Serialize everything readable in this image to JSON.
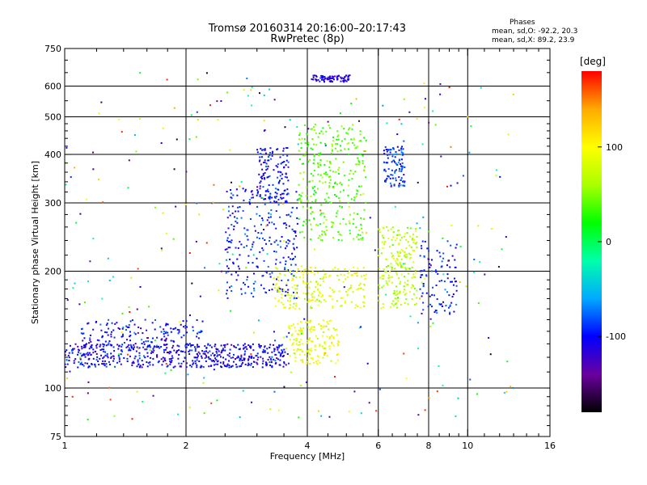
{
  "chart_data": {
    "type": "scatter",
    "title": "Tromsø 20160314 20:16:00–20:17:43",
    "subtitle": "RwPretec (8p)",
    "xlabel": "Frequency [MHz]",
    "ylabel": "Stationary phase Virtual Height [km]",
    "x_scale": "log",
    "y_scale": "log",
    "xlim": [
      1,
      16
    ],
    "ylim": [
      75,
      750
    ],
    "x_ticks": [
      1,
      2,
      4,
      6,
      8,
      10,
      16
    ],
    "y_ticks": [
      75,
      100,
      200,
      300,
      400,
      500,
      600,
      750
    ],
    "x_gridlines": [
      2,
      4,
      6,
      8,
      10
    ],
    "y_gridlines": [
      100,
      200,
      300,
      400,
      500,
      600
    ],
    "grid": true,
    "stats": {
      "heading": "Phases",
      "o_mode": "mean, sd,O: -92.2, 20.3",
      "x_mode": "mean, sd,X:  89.2, 23.9"
    },
    "colorbar": {
      "label": "[deg]",
      "range": [
        -180,
        180
      ],
      "ticks": [
        -100,
        0,
        100
      ],
      "colors": [
        "#000000",
        "#6a00a0",
        "#0000ff",
        "#00aaff",
        "#00ffaa",
        "#00ff00",
        "#aaff00",
        "#ffff00",
        "#ffaa00",
        "#ff0000"
      ]
    },
    "series_structure": [
      {
        "x_range": [
          1.0,
          3.6
        ],
        "y_range": [
          113,
          130
        ],
        "phase": -105,
        "share": 0.22
      },
      {
        "x_range": [
          1.1,
          2.2
        ],
        "y_range": [
          128,
          150
        ],
        "phase": -100,
        "share": 0.06
      },
      {
        "x_range": [
          2.5,
          3.8
        ],
        "y_range": [
          170,
          330
        ],
        "phase": -95,
        "share": 0.1
      },
      {
        "x_range": [
          3.0,
          3.6
        ],
        "y_range": [
          300,
          420
        ],
        "phase": -100,
        "share": 0.05
      },
      {
        "x_range": [
          3.6,
          4.8
        ],
        "y_range": [
          115,
          150
        ],
        "phase": 90,
        "share": 0.06
      },
      {
        "x_range": [
          3.3,
          5.6
        ],
        "y_range": [
          160,
          205
        ],
        "phase": 85,
        "share": 0.08
      },
      {
        "x_range": [
          3.8,
          5.6
        ],
        "y_range": [
          240,
          480
        ],
        "phase": 40,
        "share": 0.12
      },
      {
        "x_range": [
          4.1,
          5.1
        ],
        "y_range": [
          615,
          640
        ],
        "phase": -110,
        "share": 0.03
      },
      {
        "x_range": [
          6.0,
          7.5
        ],
        "y_range": [
          160,
          260
        ],
        "phase": 70,
        "share": 0.08
      },
      {
        "x_range": [
          6.2,
          7.0
        ],
        "y_range": [
          330,
          420
        ],
        "phase": -90,
        "share": 0.04
      },
      {
        "x_range": [
          7.6,
          9.4
        ],
        "y_range": [
          155,
          240
        ],
        "phase": -95,
        "share": 0.04
      },
      {
        "x_range": [
          1.0,
          13.0
        ],
        "y_range": [
          80,
          650
        ],
        "phase": 0,
        "share": 0.12
      }
    ]
  }
}
